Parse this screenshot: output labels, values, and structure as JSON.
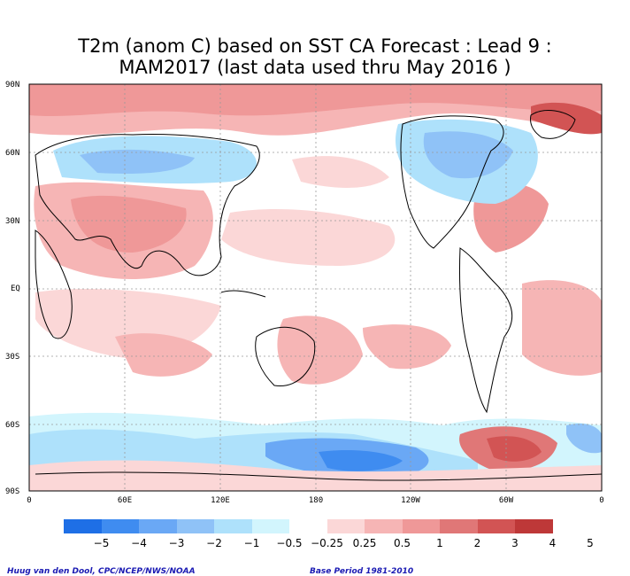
{
  "title_line1": "T2m (anom C) based on SST CA Forecast : Lead 9 :",
  "title_line2": "MAM2017 (last data used thru May 2016 )",
  "lat_labels": [
    "90N",
    "60N",
    "30N",
    "EQ",
    "30S",
    "60S",
    "90S"
  ],
  "lon_labels": [
    "0",
    "60E",
    "120E",
    "180",
    "120W",
    "60W",
    "0"
  ],
  "legend": {
    "labels": [
      "−5",
      "−4",
      "−3",
      "−2",
      "−1",
      "−0.5",
      "−0.25",
      "0.25",
      "0.5",
      "1",
      "2",
      "3",
      "4",
      "5"
    ],
    "colors": [
      "#1e6fe6",
      "#3f8cf0",
      "#6aa8f5",
      "#8fc2f7",
      "#aee1fb",
      "#d2f5fd",
      "#ffffff",
      "#fbd7d7",
      "#f6b5b5",
      "#ef9898",
      "#e07777",
      "#d25454",
      "#be3838"
    ]
  },
  "credit_left": "Huug van den Dool, CPC/NCEP/NWS/NOAA",
  "credit_right": "Base Period 1981-2010"
}
